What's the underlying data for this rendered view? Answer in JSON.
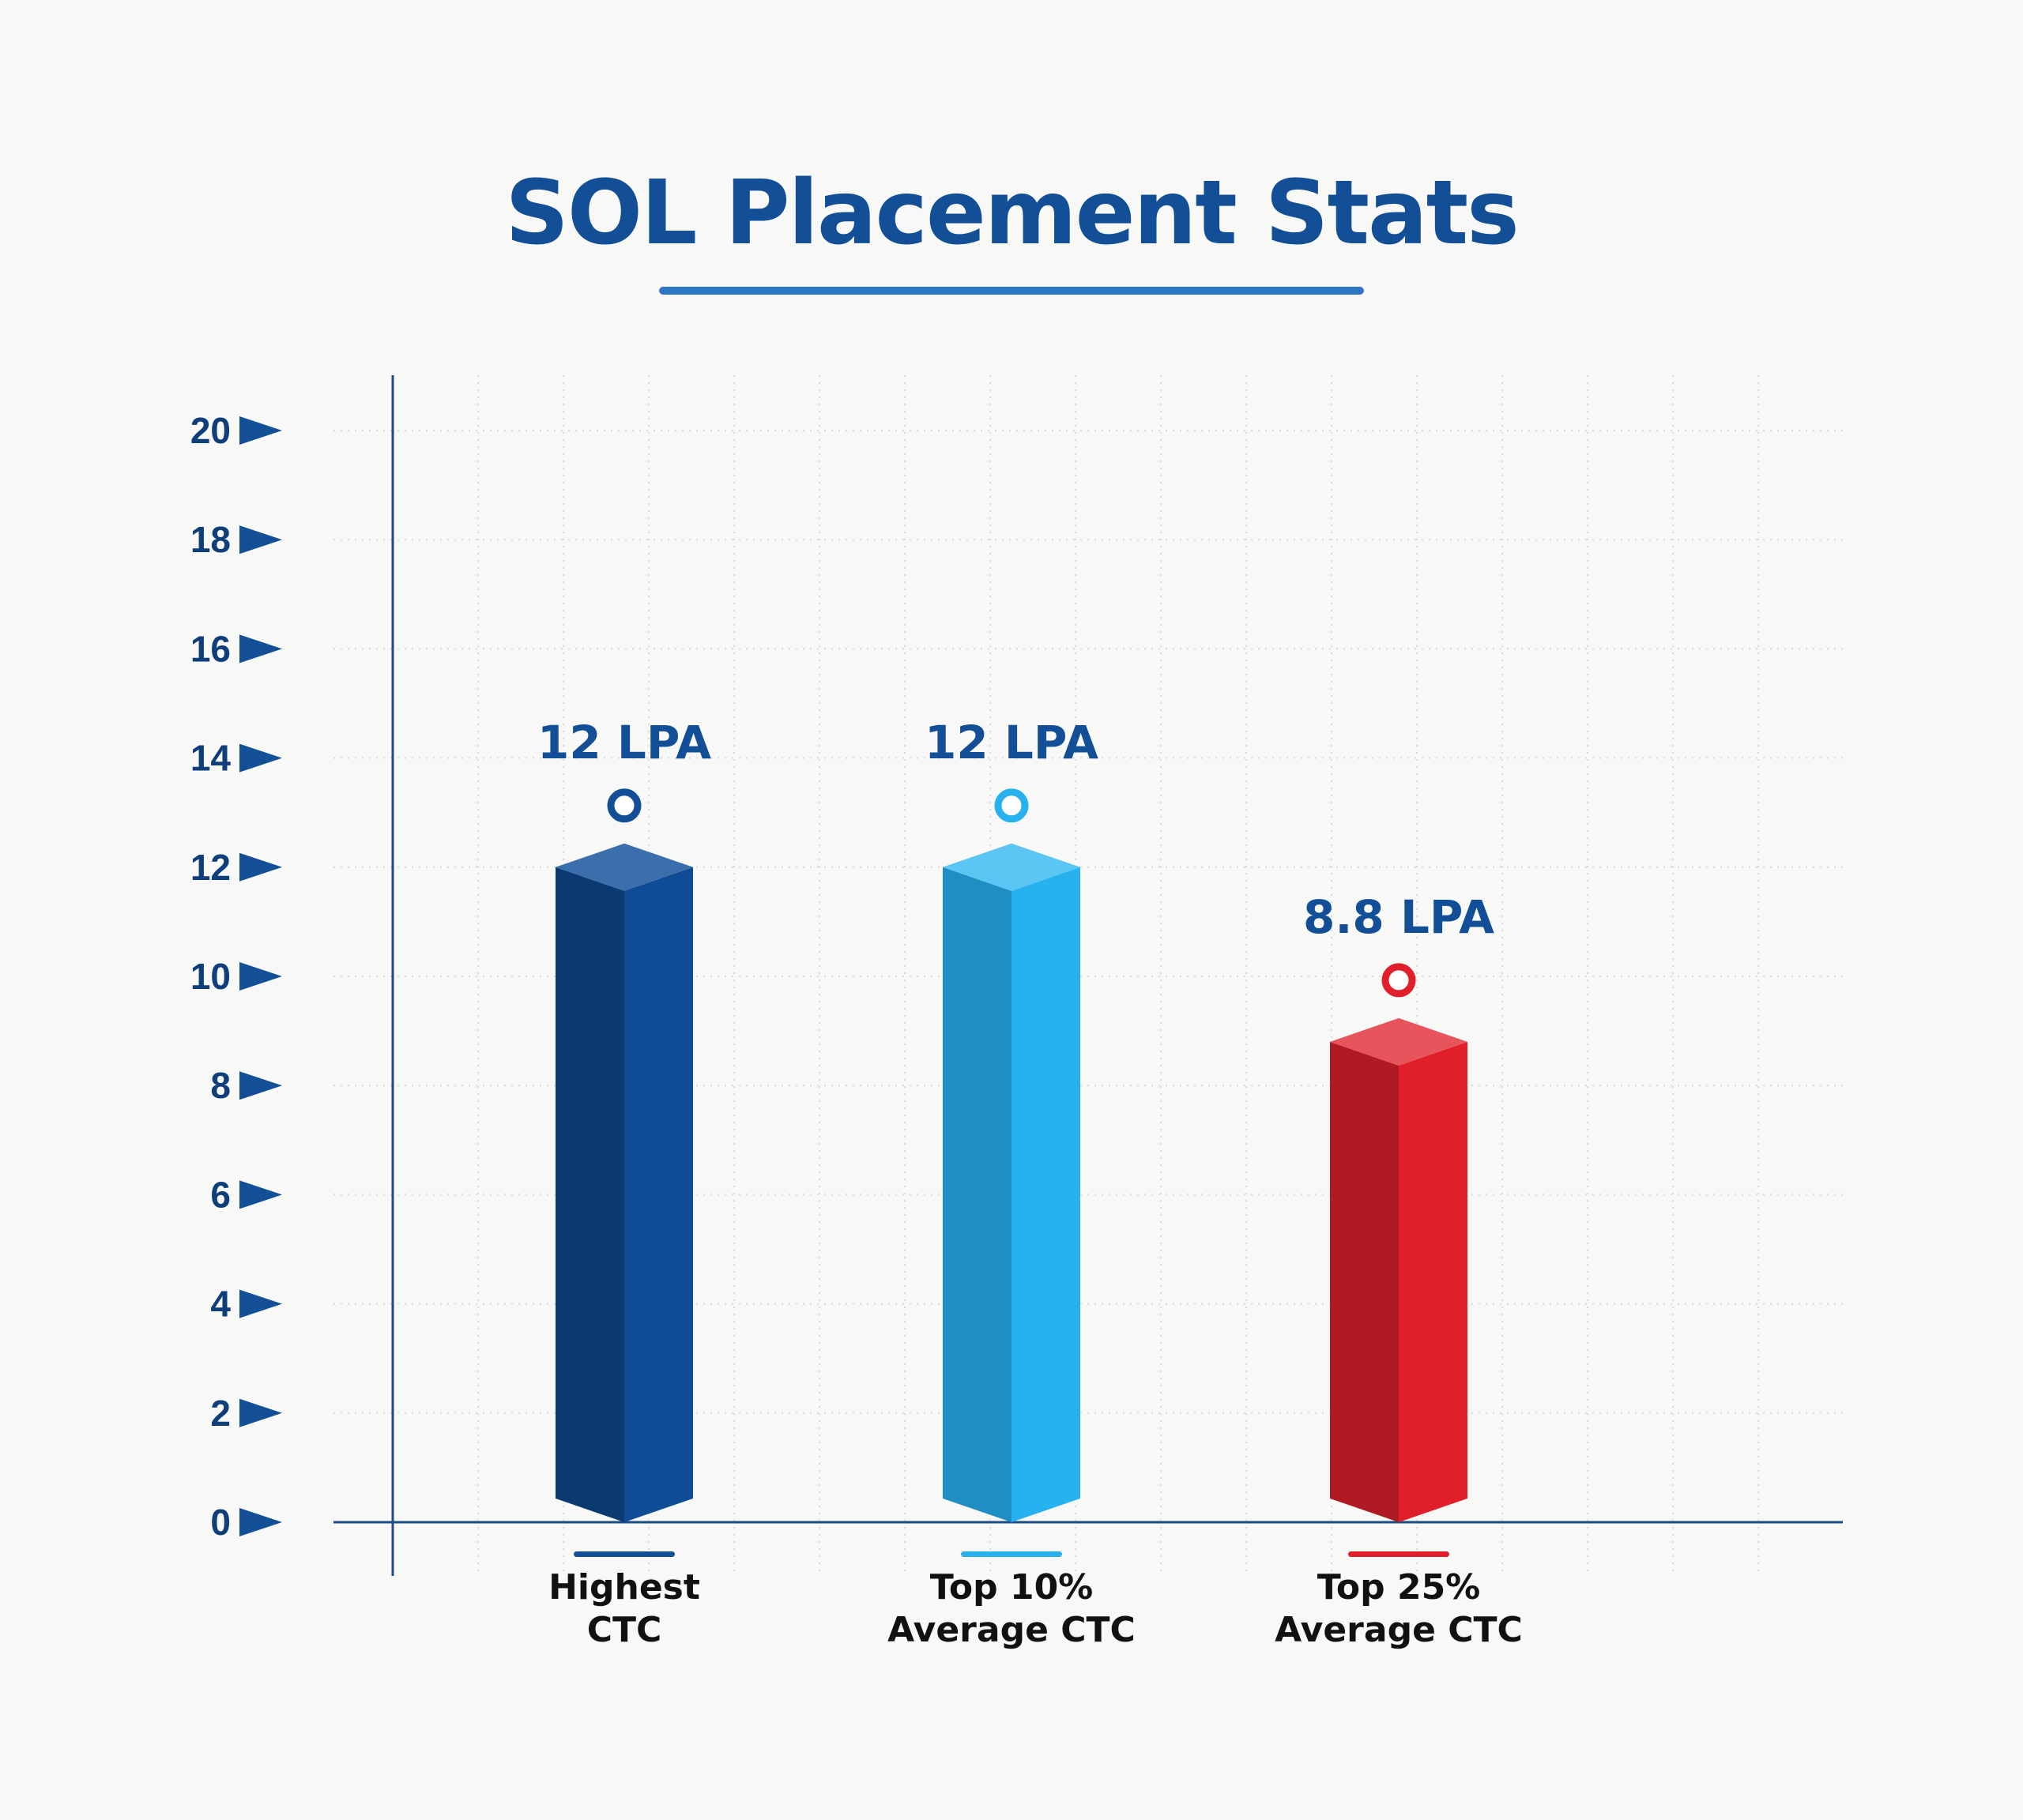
{
  "title": "SOL Placement Stats",
  "chart_data": {
    "type": "bar",
    "title": "SOL Placement Stats",
    "categories": [
      "Highest CTC",
      "Top 10% Average CTC",
      "Top 25% Average CTC"
    ],
    "category_lines": [
      [
        "Highest",
        "CTC"
      ],
      [
        "Top 10%",
        "Average CTC"
      ],
      [
        "Top 25%",
        "Average CTC"
      ]
    ],
    "values": [
      12,
      12,
      8.8
    ],
    "value_labels": [
      "12 LPA",
      "12 LPA",
      "8.8 LPA"
    ],
    "y_ticks": [
      0,
      2,
      4,
      6,
      8,
      10,
      12,
      14,
      16,
      18,
      20
    ],
    "ylim": [
      0,
      20
    ],
    "xlabel": "",
    "ylabel": "",
    "grid": true,
    "legend": "none",
    "colors": [
      {
        "front": "#0f4c96",
        "side": "#0b3a73",
        "top": "#3b6fac",
        "marker": "#124f96"
      },
      {
        "front": "#27b1ee",
        "side": "#1e8ec3",
        "top": "#5bc6f4",
        "marker": "#27b1ee"
      },
      {
        "front": "#e11f2a",
        "side": "#b01a22",
        "top": "#e8545b",
        "marker": "#e11f2a"
      }
    ]
  }
}
